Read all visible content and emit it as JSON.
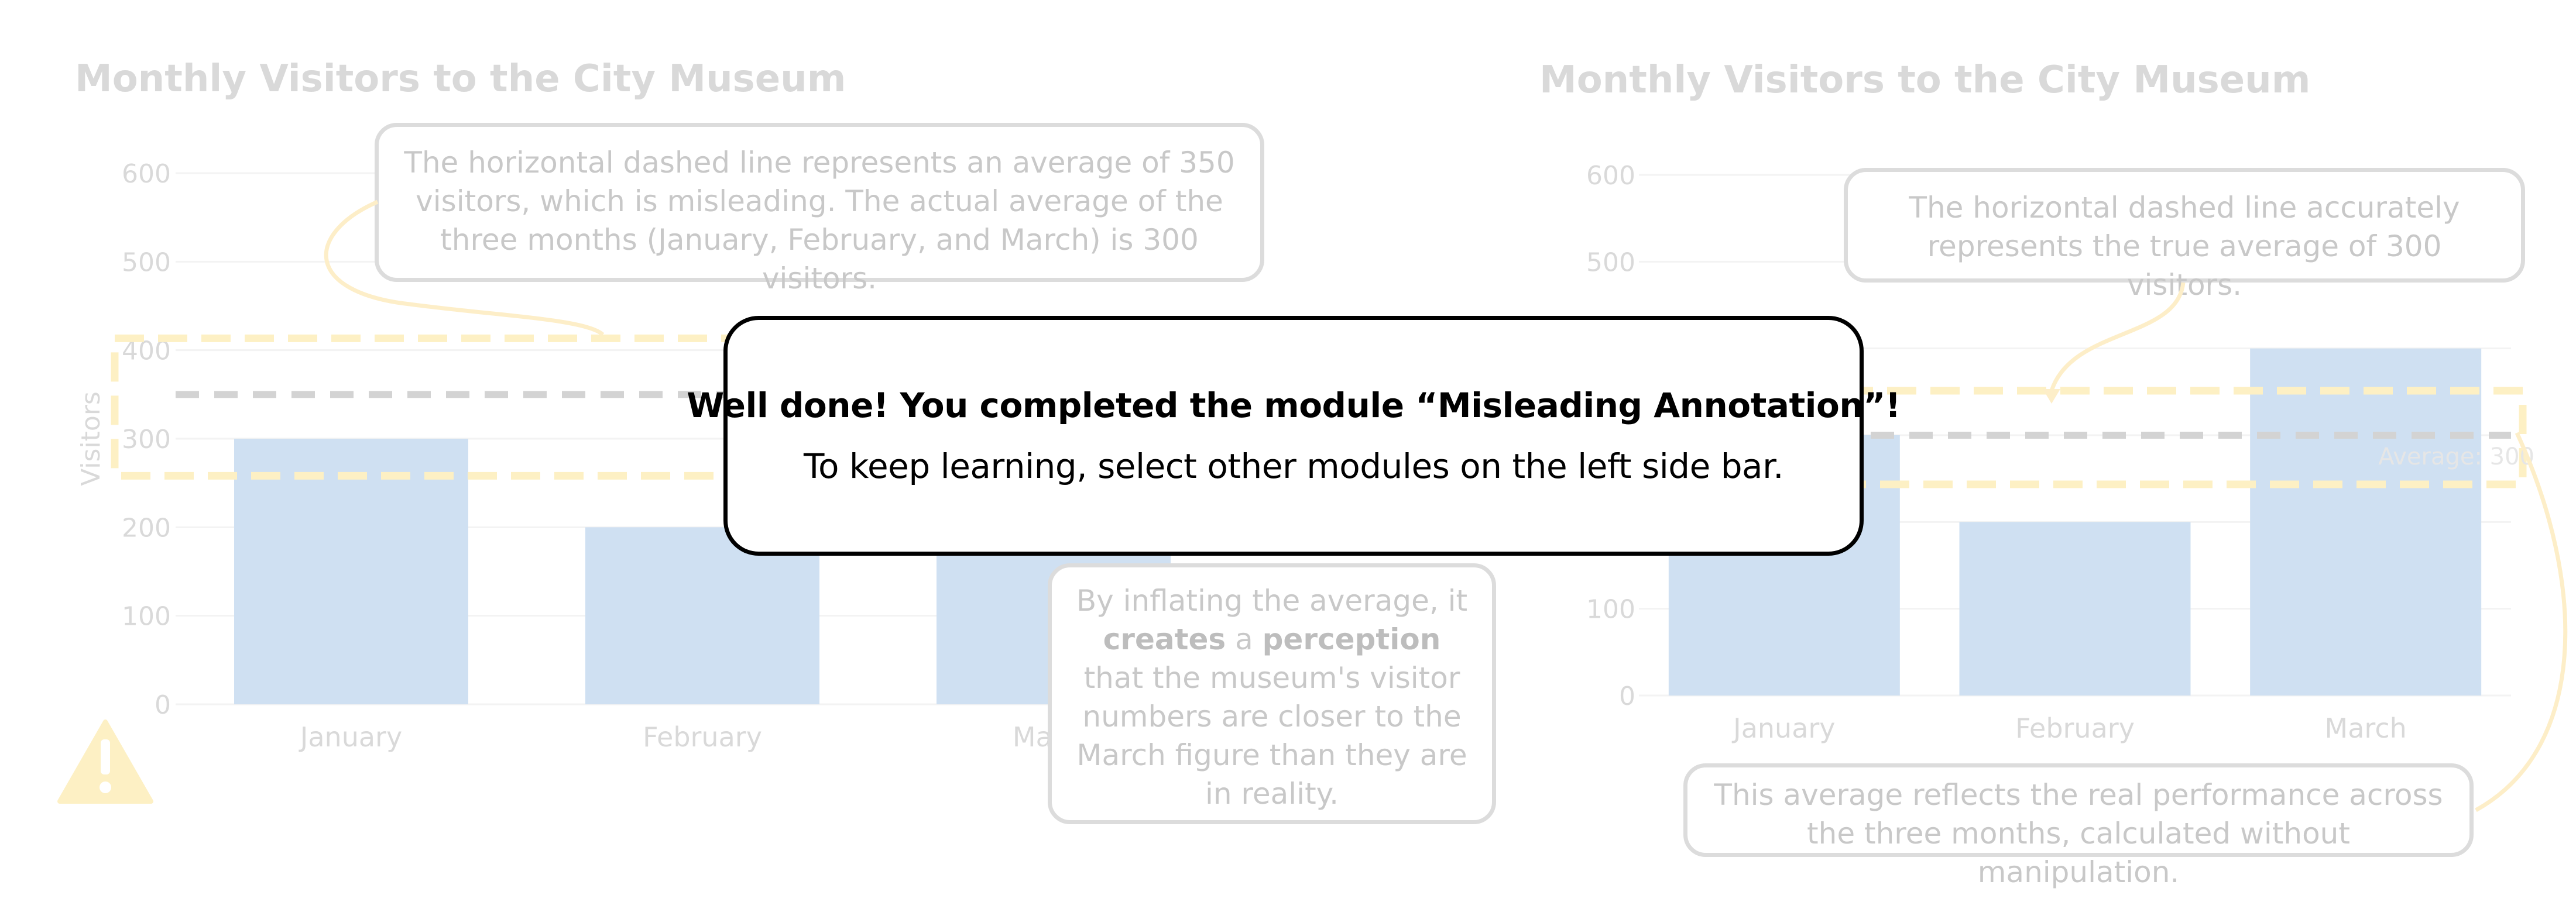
{
  "left_chart": {
    "title": "Monthly Visitors to the City Museum",
    "callout_top": "The horizontal dashed line represents an average of 350 visitors, which is misleading. The actual average of the three months (January, February, and March) is 300 visitors.",
    "callout_side": {
      "parts": [
        "By inflating the average, it ",
        "creates",
        " a ",
        "perception",
        " that the museum's visitor numbers are closer to the March figure than they are in reality."
      ]
    },
    "warning_icon": "warning-triangle-icon"
  },
  "right_chart": {
    "title": "Monthly Visitors to the City Museum",
    "callout_top": "The horizontal dashed line accurately represents the true average of 300 visitors.",
    "callout_bottom": "This average reflects the real performance across the three months, calculated without manipulation.",
    "average_label": "Average: 300"
  },
  "modal": {
    "title": "Well done! You completed the module “Misleading Annotation”!",
    "message": "To keep learning, select other modules on the left side bar."
  },
  "colors": {
    "bar": "#cfe0f2",
    "faded_text": "#d9d9d9",
    "highlight": "#fdf0c4",
    "dashed_line": "#d3d3d3",
    "modal_border": "#000000"
  },
  "chart_data": [
    {
      "type": "bar",
      "title": "Monthly Visitors to the City Museum",
      "categories": [
        "January",
        "February",
        "March"
      ],
      "values": [
        300,
        200,
        400
      ],
      "ylabel": "Visitors",
      "xlabel": "",
      "ylim": [
        0,
        600
      ],
      "yticks": [
        0,
        100,
        200,
        300,
        400,
        500,
        600
      ],
      "reference_line": {
        "value": 350,
        "style": "dashed"
      }
    },
    {
      "type": "bar",
      "title": "Monthly Visitors to the City Museum",
      "categories": [
        "January",
        "February",
        "March"
      ],
      "values": [
        300,
        200,
        400
      ],
      "ylabel": "",
      "xlabel": "",
      "ylim": [
        0,
        600
      ],
      "yticks": [
        0,
        100,
        200,
        300,
        400,
        500,
        600
      ],
      "reference_line": {
        "value": 300,
        "style": "dashed",
        "label": "Average: 300"
      }
    }
  ]
}
